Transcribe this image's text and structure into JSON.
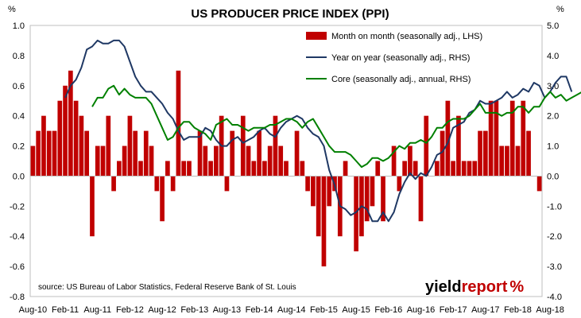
{
  "chart_data": {
    "type": "bar+line",
    "title": "US PRODUCER PRICE INDEX (PPI)",
    "left_unit_label": "%",
    "right_unit_label": "%",
    "left_axis": {
      "min": -0.8,
      "max": 1.0,
      "step": 0.2,
      "ticks": [
        "-0.8",
        "-0.6",
        "-0.4",
        "-0.2",
        "0.0",
        "0.2",
        "0.4",
        "0.6",
        "0.8",
        "1.0"
      ]
    },
    "right_axis": {
      "min": -4.0,
      "max": 5.0,
      "step": 1.0,
      "ticks": [
        "-4.0",
        "-3.0",
        "-2.0",
        "-1.0",
        "0.0",
        "1.0",
        "2.0",
        "3.0",
        "4.0",
        "5.0"
      ]
    },
    "x_tick_labels": [
      "Aug-10",
      "Feb-11",
      "Aug-11",
      "Feb-12",
      "Aug-12",
      "Feb-13",
      "Aug-13",
      "Feb-14",
      "Aug-14",
      "Feb-15",
      "Aug-15",
      "Feb-16",
      "Aug-16",
      "Feb-17",
      "Aug-17",
      "Feb-18",
      "Aug-18"
    ],
    "grid": false,
    "legend_position": "top-right",
    "source": "source: US Bureau of Labor Statistics, Federal Reserve Bank of St. Louis",
    "logo": {
      "text_dark": "yield",
      "text_red": "report",
      "symbol": "%"
    },
    "series": [
      {
        "name": "Month on month (seasonally adj., LHS)",
        "kind": "bar",
        "axis": "left",
        "color": "#c00000",
        "values": [
          0.2,
          0.3,
          0.4,
          0.3,
          0.3,
          0.5,
          0.6,
          0.7,
          0.5,
          0.4,
          0.3,
          -0.4,
          0.2,
          0.2,
          0.4,
          -0.1,
          0.1,
          0.2,
          0.4,
          0.3,
          0.1,
          0.3,
          0.2,
          -0.1,
          -0.3,
          0.1,
          -0.1,
          0.7,
          0.1,
          0.1,
          0.0,
          0.3,
          0.2,
          0.1,
          0.2,
          0.4,
          -0.1,
          0.3,
          0.0,
          0.4,
          0.2,
          0.1,
          0.3,
          0.1,
          0.2,
          0.4,
          0.2,
          0.1,
          0.0,
          0.3,
          0.1,
          -0.1,
          -0.2,
          -0.4,
          -0.6,
          -0.2,
          -0.1,
          -0.4,
          0.1,
          0.0,
          -0.5,
          -0.4,
          -0.3,
          -0.2,
          0.1,
          -0.3,
          0.0,
          0.2,
          -0.1,
          0.1,
          0.2,
          0.1,
          -0.3,
          0.4,
          0.0,
          0.1,
          0.3,
          0.5,
          0.1,
          0.4,
          0.1,
          0.1,
          0.1,
          0.3,
          0.3,
          0.5,
          0.5,
          0.2,
          0.2,
          0.5,
          0.2,
          0.5,
          0.3,
          0.0,
          -0.1
        ]
      },
      {
        "name": "Year on year (seasonally adj., RHS)",
        "kind": "line",
        "axis": "right",
        "color": "#1f3864",
        "x_start_index": 6,
        "values": [
          2.6,
          3.0,
          3.2,
          3.6,
          4.2,
          4.3,
          4.5,
          4.4,
          4.4,
          4.5,
          4.5,
          4.3,
          3.8,
          3.3,
          3.0,
          2.8,
          2.8,
          2.6,
          2.4,
          2.1,
          1.9,
          1.5,
          1.2,
          1.3,
          1.3,
          1.3,
          1.6,
          1.5,
          1.2,
          1.0,
          1.0,
          1.2,
          1.3,
          1.1,
          1.2,
          1.3,
          1.5,
          1.6,
          1.4,
          1.3,
          1.6,
          1.8,
          1.9,
          2.0,
          1.9,
          1.6,
          1.4,
          1.3,
          1.0,
          0.2,
          -0.3,
          -1.0,
          -1.1,
          -1.3,
          -1.2,
          -1.0,
          -1.1,
          -1.5,
          -1.5,
          -1.2,
          -1.5,
          -1.2,
          -0.6,
          -0.2,
          0.1,
          -0.1,
          0.1,
          0.0,
          0.3,
          0.7,
          0.8,
          1.1,
          1.6,
          1.7,
          1.8,
          2.1,
          2.2,
          2.5,
          2.4,
          2.4,
          2.5,
          2.6,
          2.8,
          2.6,
          2.7,
          2.9,
          2.8,
          3.1,
          3.0,
          2.6,
          2.8,
          3.1,
          3.3,
          3.3,
          2.8
        ]
      },
      {
        "name": "Core (seasonally adj., annual, RHS)",
        "kind": "line",
        "axis": "right",
        "color": "#008000",
        "x_start_index": 11,
        "values": [
          2.3,
          2.6,
          2.6,
          2.9,
          3.0,
          2.7,
          2.9,
          2.7,
          2.6,
          2.6,
          2.6,
          2.4,
          2.0,
          1.6,
          1.2,
          1.3,
          1.6,
          1.8,
          1.8,
          1.6,
          1.5,
          1.4,
          1.2,
          1.7,
          1.8,
          1.9,
          1.7,
          1.7,
          1.6,
          1.5,
          1.6,
          1.6,
          1.6,
          1.7,
          1.7,
          1.8,
          1.9,
          1.9,
          1.8,
          1.6,
          1.8,
          1.9,
          1.6,
          1.3,
          1.0,
          0.8,
          0.8,
          0.8,
          0.7,
          0.5,
          0.3,
          0.4,
          0.6,
          0.6,
          0.5,
          0.6,
          0.8,
          1.0,
          0.9,
          1.1,
          1.1,
          1.2,
          1.1,
          1.3,
          1.6,
          1.6,
          1.8,
          1.9,
          1.9,
          1.9,
          2.0,
          2.2,
          2.4,
          2.1,
          2.1,
          2.1,
          2.0,
          2.1,
          2.1,
          2.3,
          2.3,
          2.1,
          2.3,
          2.3,
          2.6,
          2.8,
          2.6,
          2.7,
          2.5,
          2.6,
          2.7,
          2.8,
          2.8,
          2.6,
          2.3,
          2.3,
          2.5
        ]
      }
    ]
  }
}
